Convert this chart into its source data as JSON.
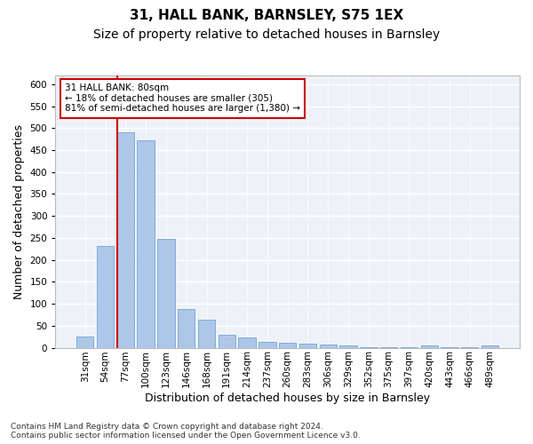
{
  "title_line1": "31, HALL BANK, BARNSLEY, S75 1EX",
  "title_line2": "Size of property relative to detached houses in Barnsley",
  "xlabel": "Distribution of detached houses by size in Barnsley",
  "ylabel": "Number of detached properties",
  "footnote": "Contains HM Land Registry data © Crown copyright and database right 2024.\nContains public sector information licensed under the Open Government Licence v3.0.",
  "categories": [
    "31sqm",
    "54sqm",
    "77sqm",
    "100sqm",
    "123sqm",
    "146sqm",
    "168sqm",
    "191sqm",
    "214sqm",
    "237sqm",
    "260sqm",
    "283sqm",
    "306sqm",
    "329sqm",
    "352sqm",
    "375sqm",
    "397sqm",
    "420sqm",
    "443sqm",
    "466sqm",
    "489sqm"
  ],
  "values": [
    25,
    232,
    490,
    472,
    248,
    88,
    63,
    30,
    23,
    13,
    11,
    10,
    8,
    5,
    1,
    1,
    1,
    6,
    1,
    1,
    5
  ],
  "bar_color": "#aec6e8",
  "bar_edge_color": "#7aaed6",
  "highlight_bar_index": 2,
  "highlight_edge_color": "#cc0000",
  "annotation_box_text": "31 HALL BANK: 80sqm\n← 18% of detached houses are smaller (305)\n81% of semi-detached houses are larger (1,380) →",
  "ylim": [
    0,
    620
  ],
  "yticks": [
    0,
    50,
    100,
    150,
    200,
    250,
    300,
    350,
    400,
    450,
    500,
    550,
    600
  ],
  "bg_color": "#eef2f8",
  "grid_color": "#ffffff",
  "fig_bg_color": "#ffffff",
  "title_fontsize": 11,
  "subtitle_fontsize": 10,
  "axis_label_fontsize": 9,
  "tick_fontsize": 7.5,
  "footnote_fontsize": 6.5
}
